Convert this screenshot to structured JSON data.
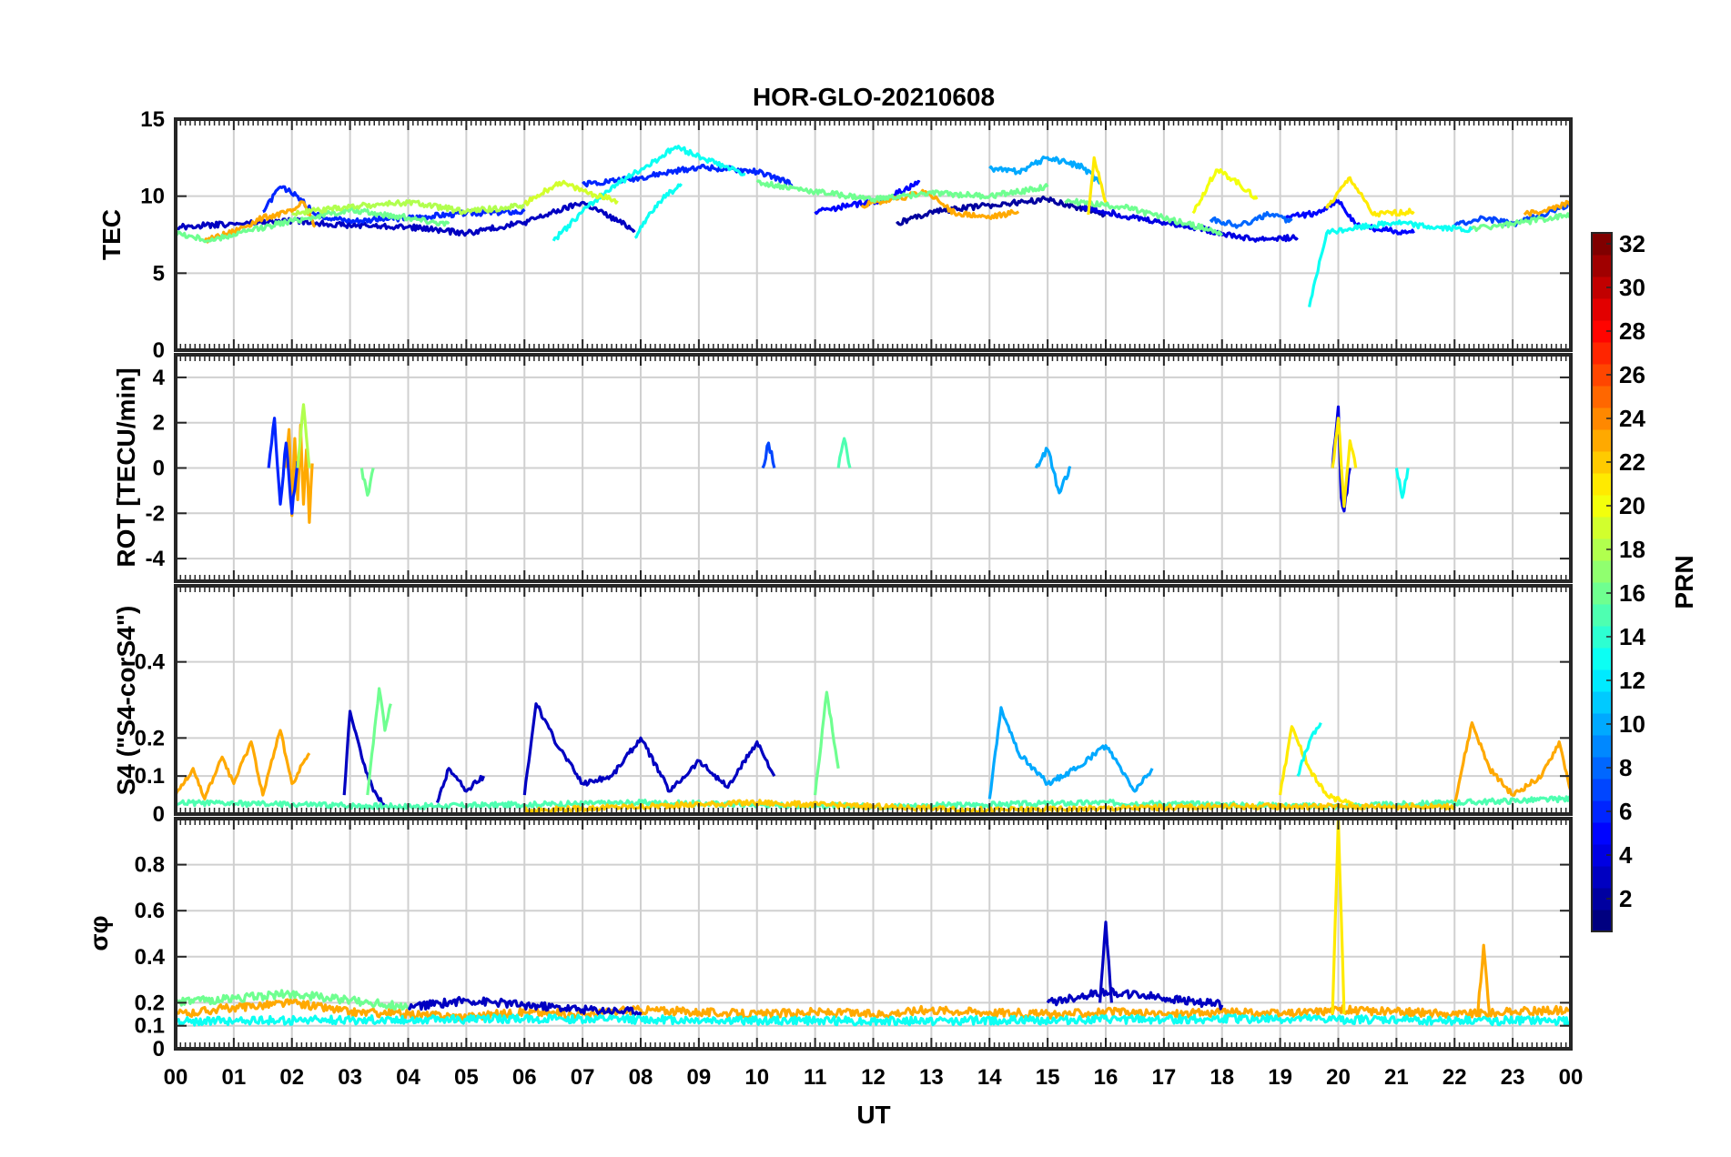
{
  "chart_data": {
    "type": "line",
    "title": "HOR-GLO-20210608",
    "xlabel": "UT",
    "x_ticks": [
      "00",
      "01",
      "02",
      "03",
      "04",
      "05",
      "06",
      "07",
      "08",
      "09",
      "10",
      "11",
      "12",
      "13",
      "14",
      "15",
      "16",
      "17",
      "18",
      "19",
      "20",
      "21",
      "22",
      "23",
      "00"
    ],
    "xlim": [
      0,
      24
    ],
    "grid": true,
    "colormap": "jet",
    "colorbar": {
      "label": "PRN",
      "range": [
        1,
        32
      ],
      "ticks": [
        "2",
        "4",
        "6",
        "8",
        "10",
        "12",
        "14",
        "16",
        "18",
        "20",
        "22",
        "24",
        "26",
        "28",
        "30",
        "32"
      ]
    },
    "panels": [
      {
        "ylabel": "TEC",
        "ylim": [
          0,
          15
        ],
        "y_ticks": [
          "0",
          "5",
          "10",
          "15"
        ],
        "series": [
          {
            "prn": 3,
            "x": [
              0.0,
              1.0,
              2.0,
              3.0,
              4.0,
              5.0,
              6.0,
              7.0,
              7.9
            ],
            "y": [
              8.0,
              8.2,
              8.4,
              8.1,
              8.0,
              7.6,
              8.3,
              9.6,
              7.8
            ]
          },
          {
            "prn": 2,
            "x": [
              12.4,
              13.0,
              14.0,
              15.0,
              16.0
            ],
            "y": [
              8.2,
              9.0,
              9.4,
              9.8,
              8.8
            ]
          },
          {
            "prn": 4,
            "x": [
              15.6,
              16.5,
              17.5,
              18.5,
              19.3
            ],
            "y": [
              9.3,
              8.6,
              8.0,
              7.2,
              7.3
            ]
          },
          {
            "prn": 5,
            "x": [
              19.1,
              19.6,
              20.0,
              20.3,
              20.8,
              21.3
            ],
            "y": [
              8.6,
              8.9,
              9.7,
              8.1,
              7.8,
              7.6
            ]
          },
          {
            "prn": 6,
            "x": [
              1.5,
              1.8,
              2.1,
              2.4,
              3.0,
              4.0,
              5.0,
              6.0
            ],
            "y": [
              9.0,
              10.6,
              10.0,
              8.8,
              8.4,
              8.6,
              8.9,
              9.0
            ]
          },
          {
            "prn": 6,
            "x": [
              7.0,
              8.0,
              9.0,
              10.0,
              10.6
            ],
            "y": [
              10.8,
              11.2,
              11.9,
              11.6,
              10.8
            ]
          },
          {
            "prn": 5,
            "x": [
              11.0,
              11.6,
              12.2,
              12.8
            ],
            "y": [
              9.0,
              9.4,
              9.8,
              10.9
            ]
          },
          {
            "prn": 10,
            "x": [
              14.0,
              14.5,
              15.0,
              15.6,
              15.9
            ],
            "y": [
              11.8,
              11.6,
              12.5,
              11.9,
              10.8
            ]
          },
          {
            "prn": 8,
            "x": [
              17.8,
              18.3,
              18.8,
              19.2
            ],
            "y": [
              8.5,
              8.1,
              8.8,
              8.4
            ]
          },
          {
            "prn": 7,
            "x": [
              22.0,
              22.5,
              23.0,
              24.0
            ],
            "y": [
              8.1,
              8.6,
              8.2,
              9.4
            ]
          },
          {
            "prn": 23,
            "x": [
              0.5,
              1.0,
              1.5,
              2.0,
              2.2,
              2.4
            ],
            "y": [
              7.1,
              7.7,
              8.6,
              9.0,
              9.6,
              8.0
            ]
          },
          {
            "prn": 23,
            "x": [
              11.8,
              12.4,
              12.9,
              13.4,
              14.0,
              14.5
            ],
            "y": [
              9.4,
              9.8,
              10.3,
              8.9,
              8.6,
              9.0
            ]
          },
          {
            "prn": 23,
            "x": [
              23.2,
              23.6,
              24.0
            ],
            "y": [
              8.8,
              9.1,
              9.6
            ]
          },
          {
            "prn": 13,
            "x": [
              6.5,
              7.0,
              7.5,
              8.0,
              8.6,
              9.2,
              9.8
            ],
            "y": [
              7.1,
              9.0,
              10.6,
              11.7,
              13.2,
              12.3,
              11.4
            ]
          },
          {
            "prn": 13,
            "x": [
              7.9,
              8.3,
              8.7
            ],
            "y": [
              7.3,
              9.6,
              10.8
            ]
          },
          {
            "prn": 13,
            "x": [
              19.5,
              19.8,
              20.2,
              21.0,
              21.6,
              22.3
            ],
            "y": [
              2.8,
              7.6,
              7.9,
              8.3,
              8.0,
              7.8
            ]
          },
          {
            "prn": 16,
            "x": [
              0.0,
              0.6,
              1.2,
              2.0,
              3.0,
              4.0,
              4.7
            ],
            "y": [
              7.6,
              7.1,
              7.7,
              8.4,
              9.1,
              8.6,
              8.2
            ]
          },
          {
            "prn": 16,
            "x": [
              10.0,
              11.0,
              12.0,
              13.0,
              14.0,
              15.0
            ],
            "y": [
              10.9,
              10.3,
              9.8,
              10.2,
              10.0,
              10.6
            ]
          },
          {
            "prn": 16,
            "x": [
              15.3,
              16.3,
              17.3,
              18.0
            ],
            "y": [
              9.7,
              9.3,
              8.3,
              7.6
            ]
          },
          {
            "prn": 16,
            "x": [
              22.3,
              23.0,
              24.0
            ],
            "y": [
              7.9,
              8.2,
              8.8
            ]
          },
          {
            "prn": 18,
            "x": [
              2.0,
              3.0,
              4.0,
              5.0,
              6.0
            ],
            "y": [
              8.9,
              9.3,
              9.6,
              9.0,
              9.4
            ]
          },
          {
            "prn": 19,
            "x": [
              6.0,
              6.6,
              7.2,
              7.6
            ],
            "y": [
              9.5,
              10.9,
              10.1,
              9.7
            ]
          },
          {
            "prn": 20,
            "x": [
              17.5,
              17.9,
              18.2,
              18.6
            ],
            "y": [
              8.9,
              11.7,
              11.1,
              9.8
            ]
          },
          {
            "prn": 21,
            "x": [
              19.8,
              20.2,
              20.6,
              21.3
            ],
            "y": [
              9.2,
              11.2,
              8.8,
              9.0
            ]
          },
          {
            "prn": 21,
            "x": [
              15.7,
              15.8,
              16.0
            ],
            "y": [
              8.8,
              12.5,
              9.6
            ]
          }
        ]
      },
      {
        "ylabel": "ROT [TECU/min]",
        "ylim": [
          -5,
          5
        ],
        "y_ticks": [
          "-4",
          "-2",
          "0",
          "2",
          "4"
        ],
        "series": [
          {
            "prn": 23,
            "x": [
              1.9,
              1.95,
              2.0,
              2.05,
              2.1,
              2.15,
              2.2,
              2.25,
              2.3,
              2.35
            ],
            "y": [
              0.0,
              1.7,
              -2.1,
              1.3,
              -1.4,
              1.9,
              -1.6,
              0.8,
              -2.4,
              0.2
            ]
          },
          {
            "prn": 6,
            "x": [
              1.6,
              1.7,
              1.8,
              1.9,
              2.0,
              2.1
            ],
            "y": [
              0.0,
              2.2,
              -1.6,
              1.1,
              -2.0,
              0.3
            ]
          },
          {
            "prn": 18,
            "x": [
              2.1,
              2.2,
              2.3
            ],
            "y": [
              0.0,
              2.8,
              0.0
            ]
          },
          {
            "prn": 16,
            "x": [
              3.2,
              3.3,
              3.4
            ],
            "y": [
              0.0,
              -1.2,
              0.0
            ]
          },
          {
            "prn": 7,
            "x": [
              10.1,
              10.2,
              10.3
            ],
            "y": [
              0.0,
              1.1,
              0.0
            ]
          },
          {
            "prn": 15,
            "x": [
              11.4,
              11.5,
              11.6
            ],
            "y": [
              0.0,
              1.3,
              0.0
            ]
          },
          {
            "prn": 4,
            "x": [
              19.9,
              20.0,
              20.05,
              20.1,
              20.2
            ],
            "y": [
              0.0,
              2.7,
              -1.3,
              -1.9,
              0.0
            ]
          },
          {
            "prn": 21,
            "x": [
              19.9,
              20.0,
              20.1,
              20.2,
              20.3
            ],
            "y": [
              0.0,
              2.2,
              -1.7,
              1.2,
              0.0
            ]
          },
          {
            "prn": 13,
            "x": [
              21.0,
              21.1,
              21.2
            ],
            "y": [
              0.0,
              -1.3,
              0.0
            ]
          },
          {
            "prn": 10,
            "x": [
              14.8,
              15.0,
              15.2,
              15.4
            ],
            "y": [
              0.0,
              0.8,
              -1.1,
              0.0
            ]
          }
        ]
      },
      {
        "ylabel": "S4 (\"S4-corS4\")",
        "ylim": [
          0,
          0.6
        ],
        "y_ticks": [
          "0",
          "0.1",
          "0.2",
          "0.4"
        ],
        "series": [
          {
            "prn": 23,
            "x": [
              0.0,
              0.3,
              0.5,
              0.8,
              1.0,
              1.3,
              1.5,
              1.8,
              2.0,
              2.3
            ],
            "y": [
              0.05,
              0.12,
              0.04,
              0.15,
              0.08,
              0.19,
              0.05,
              0.22,
              0.08,
              0.16
            ]
          },
          {
            "prn": 3,
            "x": [
              2.9,
              3.0,
              3.2,
              3.4,
              3.6
            ],
            "y": [
              0.05,
              0.27,
              0.15,
              0.06,
              0.02
            ]
          },
          {
            "prn": 16,
            "x": [
              3.3,
              3.5,
              3.6,
              3.7
            ],
            "y": [
              0.05,
              0.33,
              0.22,
              0.29
            ]
          },
          {
            "prn": 3,
            "x": [
              4.5,
              4.7,
              5.0,
              5.3
            ],
            "y": [
              0.03,
              0.12,
              0.06,
              0.1
            ]
          },
          {
            "prn": 3,
            "x": [
              6.0,
              6.2,
              6.5,
              7.0,
              7.5,
              8.0,
              8.5,
              9.0,
              9.5,
              10.0,
              10.3
            ],
            "y": [
              0.05,
              0.29,
              0.2,
              0.08,
              0.1,
              0.2,
              0.06,
              0.14,
              0.07,
              0.19,
              0.1
            ]
          },
          {
            "prn": 16,
            "x": [
              11.0,
              11.2,
              11.4
            ],
            "y": [
              0.05,
              0.32,
              0.12
            ]
          },
          {
            "prn": 10,
            "x": [
              14.0,
              14.2,
              14.5,
              15.0,
              15.5,
              16.0,
              16.5,
              16.8
            ],
            "y": [
              0.04,
              0.28,
              0.16,
              0.08,
              0.12,
              0.18,
              0.06,
              0.12
            ]
          },
          {
            "prn": 21,
            "x": [
              19.0,
              19.2,
              19.5,
              19.8,
              20.3
            ],
            "y": [
              0.05,
              0.23,
              0.12,
              0.05,
              0.02
            ]
          },
          {
            "prn": 13,
            "x": [
              19.3,
              19.5,
              19.7
            ],
            "y": [
              0.1,
              0.19,
              0.24
            ]
          },
          {
            "prn": 23,
            "x": [
              22.0,
              22.3,
              22.6,
              23.0,
              23.5,
              23.8,
              24.0
            ],
            "y": [
              0.03,
              0.24,
              0.12,
              0.05,
              0.1,
              0.19,
              0.06
            ]
          },
          {
            "prn": 15,
            "x": [
              0.0,
              4.0,
              8.0,
              12.0,
              16.0,
              20.0,
              24.0
            ],
            "y": [
              0.03,
              0.02,
              0.03,
              0.02,
              0.03,
              0.02,
              0.04
            ]
          },
          {
            "prn": 22,
            "x": [
              6.0,
              10.0,
              14.0,
              18.0,
              22.0
            ],
            "y": [
              0.01,
              0.03,
              0.01,
              0.02,
              0.02
            ]
          }
        ]
      },
      {
        "ylabel": "σφ",
        "ylim": [
          0,
          1.0
        ],
        "y_ticks": [
          "0",
          "0.1",
          "0.2",
          "0.4",
          "0.6",
          "0.8"
        ],
        "series": [
          {
            "prn": 23,
            "x": [
              0.0,
              1.0,
              2.0,
              3.0,
              4.0,
              5.0,
              6.0,
              7.0,
              8.0,
              9.0,
              10.0,
              11.0,
              12.0,
              13.0,
              14.0,
              15.0,
              16.0,
              17.0,
              18.0,
              19.0,
              20.0,
              21.0,
              22.0,
              23.0,
              24.0
            ],
            "y": [
              0.15,
              0.18,
              0.2,
              0.16,
              0.15,
              0.14,
              0.16,
              0.15,
              0.17,
              0.16,
              0.15,
              0.16,
              0.15,
              0.17,
              0.16,
              0.15,
              0.16,
              0.15,
              0.16,
              0.15,
              0.17,
              0.16,
              0.15,
              0.16,
              0.17
            ]
          },
          {
            "prn": 3,
            "x": [
              4.0,
              5.0,
              6.0,
              7.0,
              8.0
            ],
            "y": [
              0.18,
              0.21,
              0.19,
              0.17,
              0.16
            ]
          },
          {
            "prn": 3,
            "x": [
              15.0,
              16.0,
              17.0,
              18.0
            ],
            "y": [
              0.2,
              0.25,
              0.22,
              0.19
            ]
          },
          {
            "prn": 16,
            "x": [
              0.0,
              1.0,
              2.0,
              3.0,
              4.0
            ],
            "y": [
              0.2,
              0.22,
              0.24,
              0.21,
              0.18
            ]
          },
          {
            "prn": 21,
            "x": [
              19.9,
              20.0,
              20.1
            ],
            "y": [
              0.15,
              1.0,
              0.15
            ]
          },
          {
            "prn": 23,
            "x": [
              22.4,
              22.5,
              22.6
            ],
            "y": [
              0.15,
              0.45,
              0.15
            ]
          },
          {
            "prn": 3,
            "x": [
              15.9,
              16.0,
              16.1
            ],
            "y": [
              0.2,
              0.55,
              0.2
            ]
          },
          {
            "prn": 13,
            "x": [
              0.0,
              6.0,
              12.0,
              18.0,
              24.0
            ],
            "y": [
              0.12,
              0.13,
              0.12,
              0.13,
              0.12
            ]
          }
        ]
      }
    ]
  }
}
